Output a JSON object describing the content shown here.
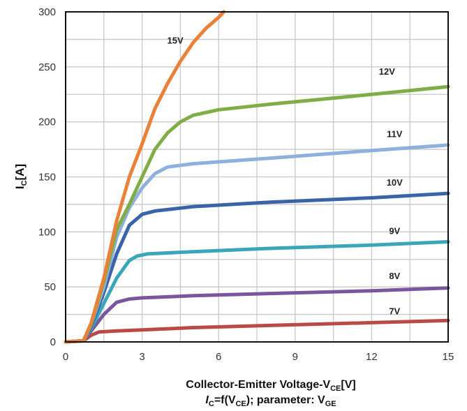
{
  "chart_data": {
    "type": "line",
    "ylabel": {
      "main": "I",
      "sub": "C",
      "tail": "[A]"
    },
    "xlabel": {
      "main": "Collector-Emitter Voltage-V",
      "sub": "CE",
      "tail": "[V]"
    },
    "subtitle": {
      "i": "I",
      "sub1": "C",
      "mid": "=f(V",
      "sub2": "CE",
      "mid2": "); parameter: V",
      "sub3": "GE"
    },
    "xlim": [
      0,
      15
    ],
    "ylim": [
      0,
      300
    ],
    "xticks": [
      "0",
      "3",
      "6",
      "9",
      "12",
      "15"
    ],
    "yticks": [
      "0",
      "50",
      "100",
      "150",
      "200",
      "250",
      "300"
    ],
    "grid": true,
    "series": [
      {
        "name": "7V",
        "color": "#b94a48",
        "x": [
          0,
          0.7,
          1.0,
          1.3,
          2,
          3,
          5,
          8,
          12,
          15
        ],
        "y": [
          0,
          1,
          6,
          9,
          10,
          11,
          13,
          15,
          17.5,
          19.5
        ]
      },
      {
        "name": "8V",
        "color": "#7a569c",
        "x": [
          0,
          0.7,
          1.0,
          1.5,
          2.0,
          2.5,
          3,
          5,
          8,
          12,
          15
        ],
        "y": [
          0,
          1,
          10,
          25,
          36,
          39,
          40,
          42,
          44,
          46.5,
          49
        ]
      },
      {
        "name": "9V",
        "color": "#3aa6b8",
        "x": [
          0,
          0.7,
          1.0,
          1.5,
          2.0,
          2.5,
          2.8,
          3.2,
          5,
          8,
          12,
          15
        ],
        "y": [
          0,
          1,
          12,
          35,
          58,
          74,
          78,
          80,
          82,
          85,
          88,
          91
        ]
      },
      {
        "name": "10V",
        "color": "#3b63a8",
        "x": [
          0,
          0.7,
          1.0,
          1.5,
          2.0,
          2.5,
          3.0,
          3.5,
          5,
          8,
          12,
          15
        ],
        "y": [
          0,
          1,
          14,
          45,
          80,
          106,
          116,
          119,
          123,
          127,
          131,
          135
        ]
      },
      {
        "name": "11V",
        "color": "#8fb0dc",
        "x": [
          0,
          0.7,
          1.0,
          1.5,
          2.0,
          2.5,
          3.0,
          3.5,
          4.0,
          5,
          8,
          12,
          15
        ],
        "y": [
          0,
          1,
          16,
          50,
          95,
          122,
          140,
          153,
          159,
          162,
          167,
          174,
          179
        ]
      },
      {
        "name": "12V",
        "color": "#80ad47",
        "x": [
          0,
          0.7,
          1.0,
          1.5,
          2.0,
          2.5,
          3.0,
          3.5,
          4.0,
          4.5,
          5.0,
          6.0,
          8,
          12,
          15
        ],
        "y": [
          0,
          1,
          16,
          55,
          102,
          125,
          150,
          175,
          190,
          200,
          206,
          211,
          216,
          225,
          232
        ]
      },
      {
        "name": "15V",
        "color": "#e8823a",
        "x": [
          0,
          0.7,
          1.0,
          1.5,
          2.0,
          2.5,
          3.0,
          3.5,
          4.0,
          4.5,
          5.0,
          5.5,
          6.0,
          6.2
        ],
        "y": [
          0,
          1,
          17,
          58,
          110,
          150,
          180,
          212,
          235,
          255,
          272,
          285,
          295,
          300
        ]
      }
    ]
  }
}
